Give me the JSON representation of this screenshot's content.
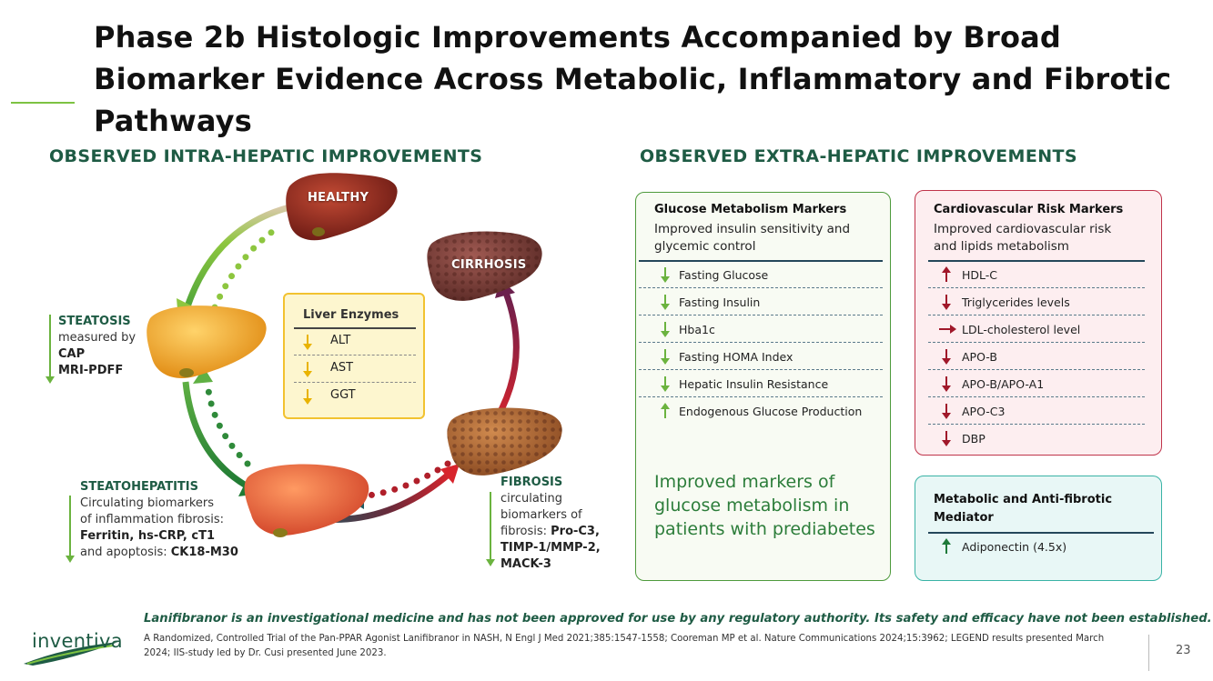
{
  "title": "Phase 2b Histologic Improvements Accompanied by Broad Biomarker Evidence Across Metabolic, Inflammatory and Fibrotic Pathways",
  "left_section": {
    "heading": "OBSERVED INTRA-HEPATIC IMPROVEMENTS",
    "livers": {
      "healthy": "HEALTHY",
      "cirrhosis": "CIRRHOSIS"
    },
    "steatosis": {
      "name": "STEATOSIS",
      "line1": "measured by",
      "line2": "CAP",
      "line3": "MRI-PDFF"
    },
    "steatohepatitis": {
      "name": "STEATOHEPATITIS",
      "line1": "Circulating biomarkers",
      "line2": "of inflammation fibrosis:",
      "line3": "Ferritin, hs-CRP, cT1",
      "line4_pre": "and apoptosis: ",
      "line4_bold": "CK18-M30"
    },
    "fibrosis": {
      "name": "FIBROSIS",
      "line1": "circulating",
      "line2": "biomarkers of",
      "line3_pre": "fibrosis: ",
      "line3_bold": "Pro-C3,",
      "line4": "TIMP-1/MMP-2,",
      "line5": "MACK-3"
    },
    "enzymes": {
      "title": "Liver Enzymes",
      "items": [
        "ALT",
        "AST",
        "GGT"
      ]
    }
  },
  "right_section": {
    "heading": "OBSERVED EXTRA-HEPATIC IMPROVEMENTS",
    "glucose": {
      "title": "Glucose Metabolism Markers",
      "subtitle1": "Improved insulin sensitivity and",
      "subtitle2": "glycemic control",
      "items": [
        {
          "label": "Fasting Glucose",
          "dir": "down"
        },
        {
          "label": "Fasting Insulin",
          "dir": "down"
        },
        {
          "label": "Hba1c",
          "dir": "down"
        },
        {
          "label": "Fasting HOMA Index",
          "dir": "down"
        },
        {
          "label": "Hepatic Insulin Resistance",
          "dir": "down"
        },
        {
          "label": "Endogenous Glucose Production",
          "dir": "up"
        }
      ],
      "note": "Improved markers of glucose metabolism in patients with prediabetes"
    },
    "cardio": {
      "title": "Cardiovascular Risk Markers",
      "subtitle1": "Improved cardiovascular risk",
      "subtitle2": "and lipids metabolism",
      "items": [
        {
          "label": "HDL-C",
          "dir": "up"
        },
        {
          "label": "Triglycerides levels",
          "dir": "down"
        },
        {
          "label": "LDL-cholesterol level",
          "dir": "right"
        },
        {
          "label": "APO-B",
          "dir": "down"
        },
        {
          "label": "APO-B/APO-A1",
          "dir": "down"
        },
        {
          "label": "APO-C3",
          "dir": "down"
        },
        {
          "label": "DBP",
          "dir": "down"
        }
      ]
    },
    "metabolic": {
      "title1": "Metabolic and Anti-fibrotic",
      "title2": "Mediator",
      "items": [
        {
          "label": "Adiponectin (4.5x)",
          "dir": "up"
        }
      ]
    }
  },
  "footer": {
    "disclaimer": "Lanifibranor is an investigational medicine and has not been approved for use by any regulatory authority. Its safety and efficacy have not been established.",
    "reference": "A Randomized, Controlled Trial of the Pan-PPAR Agonist Lanifibranor in NASH, N Engl J Med 2021;385:1547-1558; Cooreman MP et al. Nature Communications 2024;15:3962; LEGEND results presented March 2024; IIS-study led by Dr. Cusi presented June 2023.",
    "logo": "inventiva",
    "page": "23"
  },
  "colors": {
    "brand_green": "#1e5b44",
    "accent_green": "#7dc242",
    "cardio_red": "#a0182a",
    "enzyme_yellow": "#f2c230",
    "mediator_teal": "#39b3a6"
  }
}
